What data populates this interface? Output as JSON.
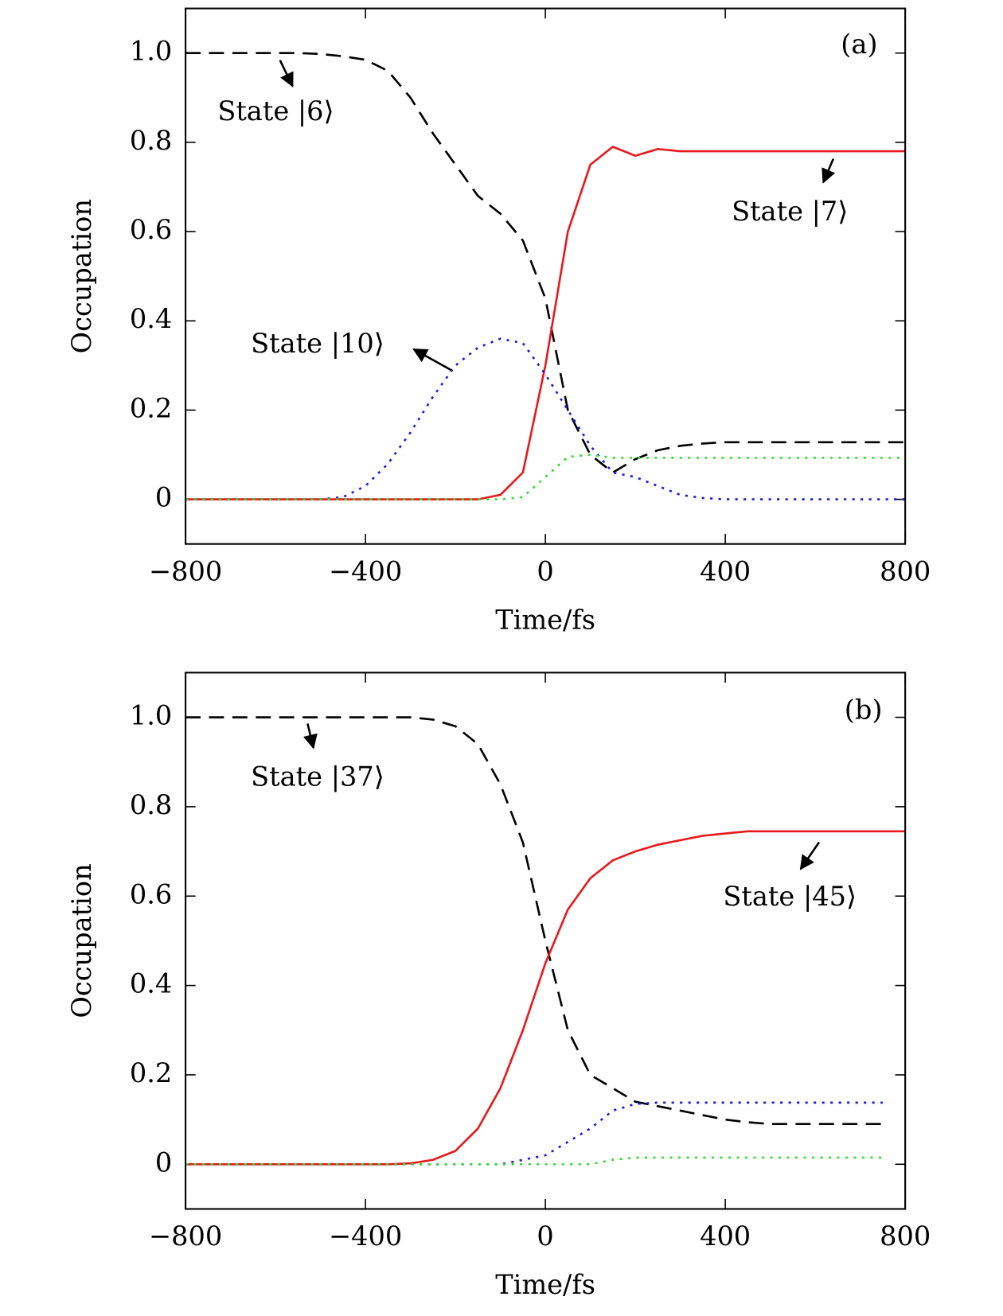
{
  "chart_data": [
    {
      "type": "line",
      "panel_label": "(a)",
      "xlabel": "Time/fs",
      "ylabel": "Occupation",
      "xlim": [
        -800,
        800
      ],
      "ylim": [
        -0.1,
        1.1
      ],
      "xticks": [
        {
          "value": -800,
          "label": "−800"
        },
        {
          "value": -400,
          "label": "−400"
        },
        0,
        400,
        800
      ],
      "yticks": [
        0,
        0.2,
        0.4,
        0.6,
        0.8,
        {
          "value": 1,
          "label": "1.0"
        }
      ],
      "x": [
        -800,
        -750,
        -700,
        -650,
        -600,
        -550,
        -500,
        -450,
        -400,
        -350,
        -300,
        -250,
        -200,
        -150,
        -100,
        -50,
        0,
        50,
        100,
        150,
        200,
        250,
        300,
        350,
        400,
        450,
        500,
        550,
        600,
        650,
        700,
        750,
        800
      ],
      "series": [
        {
          "color": "#000000",
          "dash": "dashed",
          "values": [
            1,
            1,
            1,
            1,
            1,
            1,
            0.998,
            0.993,
            0.985,
            0.96,
            0.9,
            0.82,
            0.75,
            0.68,
            0.64,
            0.58,
            0.45,
            0.2,
            0.1,
            0.06,
            0.09,
            0.11,
            0.12,
            0.125,
            0.128,
            0.128,
            0.128,
            0.128,
            0.128,
            0.128,
            0.128,
            0.128,
            0.128
          ]
        },
        {
          "color": "#e8191c",
          "dash": "solid",
          "values": [
            0,
            0,
            0,
            0,
            0,
            0,
            0,
            0,
            0,
            0,
            0,
            0,
            0,
            0,
            0.01,
            0.06,
            0.3,
            0.6,
            0.75,
            0.79,
            0.77,
            0.785,
            0.78,
            0.78,
            0.78,
            0.78,
            0.78,
            0.78,
            0.78,
            0.78,
            0.78,
            0.78,
            0.78
          ]
        },
        {
          "color": "#1a1adb",
          "dash": "dotted",
          "values": [
            0,
            0,
            0,
            0,
            0,
            0,
            0,
            0.005,
            0.03,
            0.08,
            0.15,
            0.23,
            0.3,
            0.34,
            0.36,
            0.35,
            0.28,
            0.2,
            0.12,
            0.06,
            0.05,
            0.03,
            0.01,
            0.003,
            0,
            0,
            0,
            0,
            0,
            0,
            0,
            0,
            0
          ]
        },
        {
          "color": "#33dd33",
          "dash": "dotted",
          "values": [
            0,
            0,
            0,
            0,
            0,
            0,
            0,
            0,
            0,
            0,
            0,
            0,
            0,
            0,
            0,
            0.005,
            0.05,
            0.095,
            0.1,
            0.093,
            0.093,
            0.093,
            0.093,
            0.093,
            0.093,
            0.093,
            0.093,
            0.093,
            0.093,
            0.093,
            0.093,
            0.093,
            0.093
          ]
        }
      ],
      "annotations": [
        "State |6⟩",
        "State |7⟩",
        "State |10⟩"
      ]
    },
    {
      "type": "line",
      "panel_label": "(b)",
      "xlabel": "Time/fs",
      "ylabel": "Occupation",
      "xlim": [
        -800,
        800
      ],
      "ylim": [
        -0.1,
        1.1
      ],
      "xticks": [
        {
          "value": -800,
          "label": "−800"
        },
        {
          "value": -400,
          "label": "−400"
        },
        0,
        400,
        800
      ],
      "yticks": [
        0,
        0.2,
        0.4,
        0.6,
        0.8,
        {
          "value": 1,
          "label": "1.0"
        }
      ],
      "x": [
        -800,
        -750,
        -700,
        -650,
        -600,
        -550,
        -500,
        -450,
        -400,
        -350,
        -300,
        -250,
        -200,
        -150,
        -100,
        -50,
        0,
        50,
        100,
        150,
        200,
        250,
        300,
        350,
        400,
        450,
        500,
        550,
        600,
        650,
        700,
        750,
        800
      ],
      "series": [
        {
          "color": "#000000",
          "dash": "dashed",
          "values": [
            1,
            1,
            1,
            1,
            1,
            1,
            1,
            1,
            1,
            1,
            1,
            0.995,
            0.98,
            0.94,
            0.85,
            0.72,
            0.5,
            0.3,
            0.2,
            0.17,
            0.14,
            0.13,
            0.12,
            0.11,
            0.1,
            0.094,
            0.09,
            0.09,
            0.09,
            0.09,
            0.09,
            0.09,
            null
          ]
        },
        {
          "color": "#e8191c",
          "dash": "solid",
          "values": [
            0,
            0,
            0,
            0,
            0,
            0,
            0,
            0,
            0,
            0,
            0.002,
            0.01,
            0.03,
            0.08,
            0.17,
            0.3,
            0.45,
            0.57,
            0.64,
            0.68,
            0.7,
            0.715,
            0.725,
            0.735,
            0.74,
            0.745,
            0.745,
            0.745,
            0.745,
            0.745,
            0.745,
            0.745,
            0.745
          ]
        },
        {
          "color": "#1a1adb",
          "dash": "dotted",
          "values": [
            0,
            0,
            0,
            0,
            0,
            0,
            0,
            0,
            0,
            0,
            0,
            0,
            0,
            0,
            0,
            0.01,
            0.02,
            0.05,
            0.08,
            0.12,
            0.135,
            0.138,
            0.138,
            0.138,
            0.138,
            0.138,
            0.138,
            0.138,
            0.138,
            0.138,
            0.138,
            0.138,
            null
          ]
        },
        {
          "color": "#33dd33",
          "dash": "dotted",
          "values": [
            0,
            0,
            0,
            0,
            0,
            0,
            0,
            0,
            0,
            0,
            0,
            0,
            0,
            0,
            0,
            0,
            0,
            0,
            0,
            0.01,
            0.015,
            0.015,
            0.015,
            0.015,
            0.015,
            0.015,
            0.015,
            0.015,
            0.015,
            0.015,
            0.015,
            0.015,
            null
          ]
        }
      ],
      "annotations": [
        "State |37⟩",
        "State |45⟩"
      ]
    }
  ]
}
